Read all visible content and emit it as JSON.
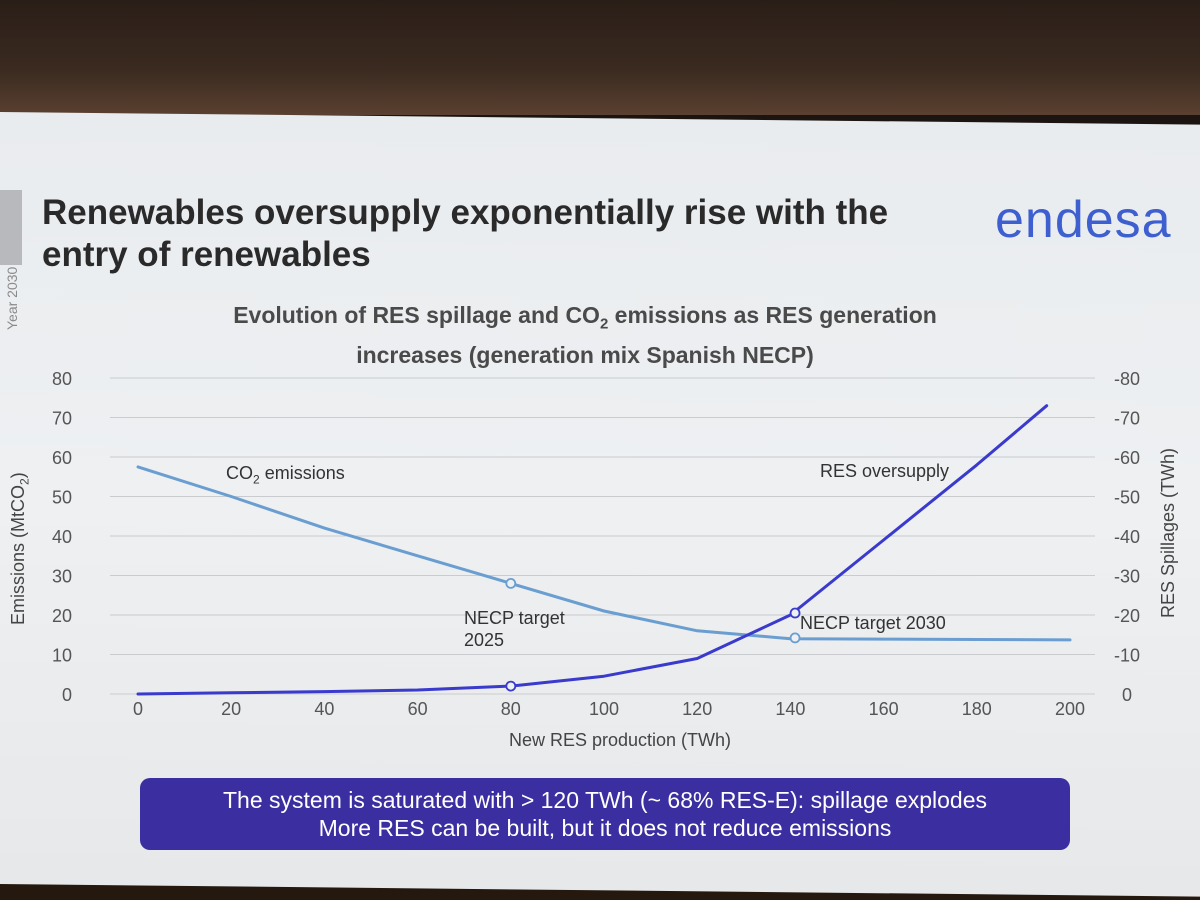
{
  "slide": {
    "title_line1": "Renewables oversupply exponentially rise with the",
    "title_line2": "entry of renewables",
    "logo": "endesa",
    "side_note": "Year 2030"
  },
  "chart_data": {
    "type": "line",
    "title_part1": "Evolution of RES spillage and CO",
    "title_sub": "2",
    "title_part2": " emissions as RES generation",
    "title_line2": "increases (generation mix Spanish NECP)",
    "xlabel": "New RES production (TWh)",
    "ylabel_prefix": "Emissions (MtCO",
    "ylabel_sub": "2",
    "ylabel_suffix": ")",
    "y2label": "RES Spillages (TWh)",
    "x_ticks": [
      "0",
      "20",
      "40",
      "60",
      "80",
      "100",
      "120",
      "140",
      "160",
      "180",
      "200"
    ],
    "y_ticks": [
      "0",
      "10",
      "20",
      "30",
      "40",
      "50",
      "60",
      "70",
      "80"
    ],
    "y2_ticks": [
      "0",
      "-10",
      "-20",
      "-30",
      "-40",
      "-50",
      "-60",
      "-70",
      "-80"
    ],
    "xlim": [
      0,
      200
    ],
    "ylim": [
      0,
      80
    ],
    "y2lim": [
      0,
      -80
    ],
    "grid": true,
    "series": [
      {
        "name_prefix": "CO",
        "name_sub": "2",
        "name_suffix": " emissions",
        "axis": "left",
        "color": "#6a9ed0",
        "x": [
          0,
          20,
          40,
          60,
          80,
          100,
          120,
          140,
          160,
          180,
          200
        ],
        "y": [
          57.5,
          50,
          42,
          35,
          28,
          21,
          16,
          14,
          13.9,
          13.8,
          13.7
        ]
      },
      {
        "name": "RES oversupply",
        "axis": "right",
        "color": "#3a3acc",
        "x": [
          0,
          20,
          40,
          60,
          80,
          100,
          120,
          140,
          160,
          180,
          195
        ],
        "y": [
          0,
          -0.3,
          -0.6,
          -1,
          -2,
          -4.5,
          -9,
          -20,
          -39,
          -58,
          -73
        ]
      }
    ],
    "markers": [
      {
        "x": 80,
        "y": 28,
        "axis": "left",
        "color": "#6a9ed0"
      },
      {
        "x": 141,
        "y": 14.2,
        "axis": "left",
        "color": "#6a9ed0"
      },
      {
        "x": 80,
        "y": -2,
        "axis": "right",
        "color": "#3a3acc"
      },
      {
        "x": 141,
        "y": -20.5,
        "axis": "right",
        "color": "#3a3acc"
      }
    ],
    "annotations": {
      "necp_2025_line1": "NECP target",
      "necp_2025_line2": "2025",
      "necp_2030": "NECP target 2030"
    }
  },
  "banner": {
    "line1": "The system is saturated with > 120 TWh (~ 68% RES-E): spillage explodes",
    "line2": "More RES can be built, but it does not reduce emissions",
    "color": "#3b2ea0"
  }
}
